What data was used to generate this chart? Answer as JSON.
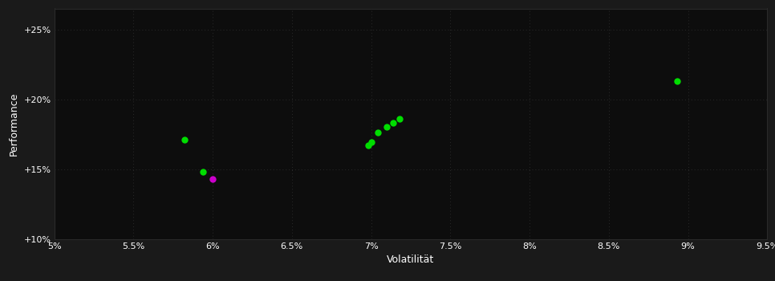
{
  "background_color": "#1a1a1a",
  "plot_bg_color": "#0d0d0d",
  "grid_color": "#2a2a2a",
  "text_color": "#ffffff",
  "xlabel": "Volatilität",
  "ylabel": "Performance",
  "xlim": [
    0.05,
    0.095
  ],
  "ylim": [
    0.1,
    0.265
  ],
  "xticks": [
    0.05,
    0.055,
    0.06,
    0.065,
    0.07,
    0.075,
    0.08,
    0.085,
    0.09,
    0.095
  ],
  "yticks": [
    0.1,
    0.15,
    0.2,
    0.25
  ],
  "ytick_labels": [
    "+10%",
    "+15%",
    "+20%",
    "+25%"
  ],
  "xtick_labels": [
    "5%",
    "5.5%",
    "6%",
    "6.5%",
    "7%",
    "7.5%",
    "8%",
    "8.5%",
    "9%",
    "9.5%"
  ],
  "green_points": [
    [
      0.0582,
      0.171
    ],
    [
      0.0594,
      0.148
    ],
    [
      0.0698,
      0.167
    ],
    [
      0.07,
      0.169
    ],
    [
      0.0704,
      0.176
    ],
    [
      0.071,
      0.18
    ],
    [
      0.0714,
      0.183
    ],
    [
      0.0718,
      0.186
    ],
    [
      0.0893,
      0.213
    ]
  ],
  "magenta_points": [
    [
      0.06,
      0.143
    ]
  ],
  "green_color": "#00dd00",
  "magenta_color": "#cc00cc",
  "marker_size": 6
}
